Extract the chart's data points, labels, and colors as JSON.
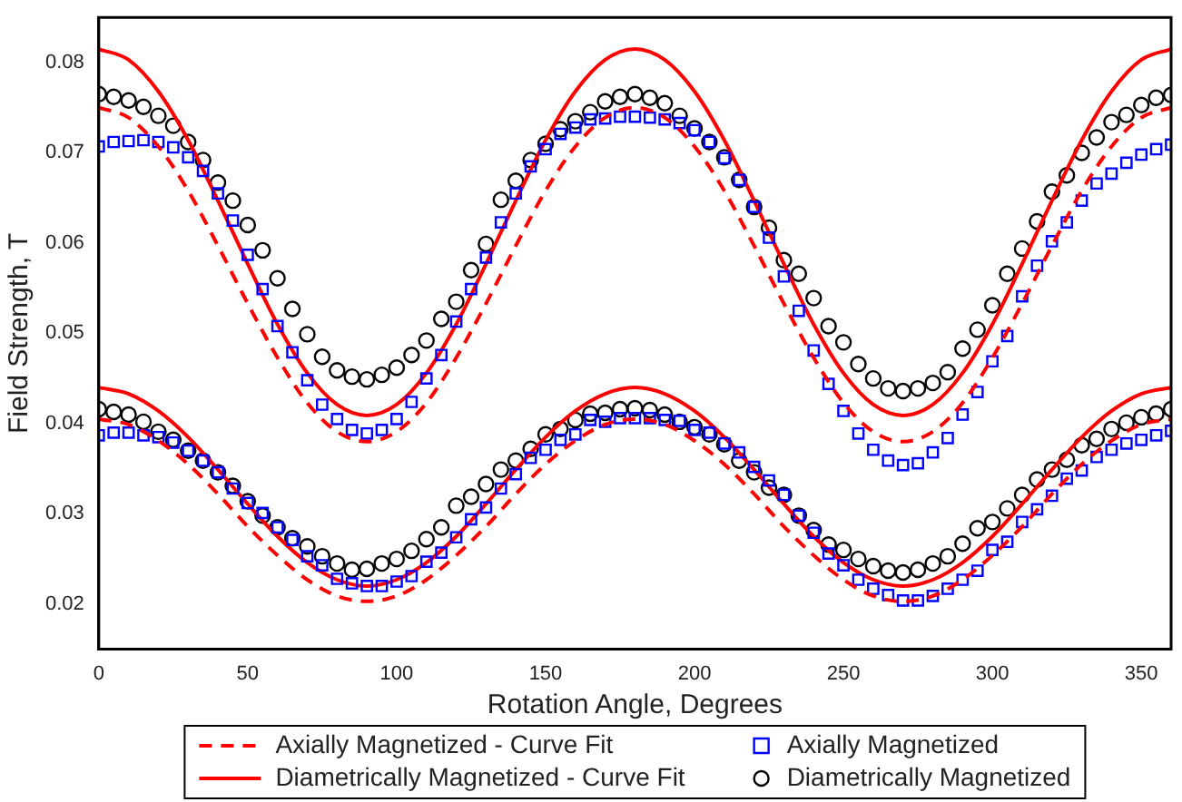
{
  "chart_data": {
    "type": "line",
    "xlabel": "Rotation Angle, Degrees",
    "ylabel": "Field Strength, T",
    "xlim": [
      0,
      360
    ],
    "xticks": [
      0,
      50,
      100,
      150,
      200,
      250,
      300,
      350
    ],
    "ylim": [
      0.015,
      0.085
    ],
    "yticks": [
      0.02,
      0.03,
      0.04,
      0.05,
      0.06,
      0.07,
      0.08
    ],
    "grid": false,
    "legend": "bottom",
    "x": [
      0,
      5,
      10,
      15,
      20,
      25,
      30,
      35,
      40,
      45,
      50,
      55,
      60,
      65,
      70,
      75,
      80,
      85,
      90,
      95,
      100,
      105,
      110,
      115,
      120,
      125,
      130,
      135,
      140,
      145,
      150,
      155,
      160,
      165,
      170,
      175,
      180,
      185,
      190,
      195,
      200,
      205,
      210,
      215,
      220,
      225,
      230,
      235,
      240,
      245,
      250,
      255,
      260,
      265,
      270,
      275,
      280,
      285,
      290,
      295,
      300,
      305,
      310,
      315,
      320,
      325,
      330,
      335,
      340,
      345,
      350,
      355,
      360
    ],
    "series": [
      {
        "name": "Axially Magnetized - Curve Fit",
        "type": "line",
        "color": "#ff0000",
        "line_style": "dashed",
        "marker": "none",
        "x": [
          0,
          10,
          20,
          30,
          40,
          50,
          60,
          70,
          80,
          90,
          100,
          110,
          120,
          130,
          140,
          150,
          160,
          170,
          180,
          190,
          200,
          210,
          220,
          230,
          240,
          250,
          260,
          270,
          280,
          290,
          300,
          310,
          320,
          330,
          340,
          350,
          360
        ],
        "values": [
          0.075,
          0.0739,
          0.0707,
          0.0658,
          0.0597,
          0.0533,
          0.0473,
          0.0423,
          0.0391,
          0.038,
          0.0391,
          0.0423,
          0.0473,
          0.0533,
          0.0597,
          0.0658,
          0.0707,
          0.0739,
          0.075,
          0.0739,
          0.0707,
          0.0658,
          0.0597,
          0.0533,
          0.0473,
          0.0423,
          0.0391,
          0.038,
          0.0391,
          0.0423,
          0.0473,
          0.0533,
          0.0597,
          0.0658,
          0.0707,
          0.0739,
          0.075
        ]
      },
      {
        "name": "Axially Magnetized",
        "type": "scatter",
        "color": "#0000ff",
        "marker": "square",
        "values": [
          0.0707,
          0.0712,
          0.0713,
          0.0714,
          0.0712,
          0.0706,
          0.0695,
          0.068,
          0.0655,
          0.0625,
          0.0587,
          0.0549,
          0.0508,
          0.0479,
          0.0448,
          0.0421,
          0.0405,
          0.0393,
          0.0389,
          0.0393,
          0.0405,
          0.0424,
          0.045,
          0.0476,
          0.0513,
          0.0549,
          0.0584,
          0.0623,
          0.0655,
          0.0685,
          0.0704,
          0.0721,
          0.0728,
          0.0737,
          0.0738,
          0.074,
          0.074,
          0.0739,
          0.0737,
          0.0733,
          0.0725,
          0.0712,
          0.0694,
          0.067,
          0.064,
          0.0606,
          0.0563,
          0.0525,
          0.0481,
          0.0444,
          0.0414,
          0.0389,
          0.0371,
          0.0359,
          0.0354,
          0.0356,
          0.0368,
          0.0384,
          0.041,
          0.0435,
          0.0469,
          0.0497,
          0.0541,
          0.0575,
          0.0602,
          0.0623,
          0.0647,
          0.0666,
          0.0677,
          0.0689,
          0.0698,
          0.0704,
          0.0709
        ]
      },
      {
        "name": "Diametrically Magnetized - Curve Fit",
        "type": "line",
        "color": "#ff0000",
        "line_style": "solid",
        "marker": "none",
        "x": [
          0,
          10,
          20,
          30,
          40,
          50,
          60,
          70,
          80,
          90,
          100,
          110,
          120,
          130,
          140,
          150,
          160,
          170,
          180,
          190,
          200,
          210,
          220,
          230,
          240,
          250,
          260,
          270,
          280,
          290,
          300,
          310,
          320,
          330,
          340,
          350,
          360
        ],
        "values": [
          0.0815,
          0.0803,
          0.0768,
          0.0714,
          0.0647,
          0.0577,
          0.051,
          0.0456,
          0.0421,
          0.0409,
          0.0421,
          0.0456,
          0.051,
          0.0577,
          0.0647,
          0.0714,
          0.0768,
          0.0803,
          0.0815,
          0.0803,
          0.0768,
          0.0714,
          0.0647,
          0.0577,
          0.051,
          0.0456,
          0.0421,
          0.0409,
          0.0421,
          0.0456,
          0.051,
          0.0577,
          0.0647,
          0.0714,
          0.0768,
          0.0803,
          0.0815
        ]
      },
      {
        "name": "Diametrically Magnetized",
        "type": "scatter",
        "color": "#000000",
        "marker": "circle",
        "values": [
          0.0765,
          0.0762,
          0.0758,
          0.0751,
          0.0741,
          0.073,
          0.0712,
          0.0692,
          0.0667,
          0.0647,
          0.062,
          0.0592,
          0.0561,
          0.0527,
          0.0499,
          0.0474,
          0.0459,
          0.0452,
          0.0449,
          0.0454,
          0.0462,
          0.0476,
          0.0492,
          0.0516,
          0.0535,
          0.057,
          0.0599,
          0.0648,
          0.0669,
          0.0692,
          0.071,
          0.0726,
          0.0735,
          0.0745,
          0.0757,
          0.0762,
          0.0765,
          0.0761,
          0.0755,
          0.0741,
          0.0727,
          0.0712,
          0.0695,
          0.067,
          0.064,
          0.0617,
          0.0581,
          0.0566,
          0.0539,
          0.0508,
          0.049,
          0.0466,
          0.045,
          0.0439,
          0.0436,
          0.0439,
          0.0445,
          0.0457,
          0.0483,
          0.0504,
          0.0531,
          0.0566,
          0.0594,
          0.0624,
          0.0657,
          0.0675,
          0.07,
          0.0717,
          0.0734,
          0.0742,
          0.0753,
          0.0761,
          0.0764
        ]
      },
      {
        "type": "line",
        "color": "#ff0000",
        "line_style": "dashed",
        "marker": "none",
        "x": [
          0,
          10,
          20,
          30,
          40,
          50,
          60,
          70,
          80,
          90,
          100,
          110,
          120,
          130,
          140,
          150,
          160,
          170,
          180,
          190,
          200,
          210,
          220,
          230,
          240,
          250,
          260,
          270,
          280,
          290,
          300,
          310,
          320,
          330,
          340,
          350,
          360
        ],
        "values": [
          0.0405,
          0.0399,
          0.0381,
          0.0355,
          0.0322,
          0.0286,
          0.0254,
          0.0227,
          0.0209,
          0.0203,
          0.0209,
          0.0227,
          0.0254,
          0.0286,
          0.0322,
          0.0355,
          0.0381,
          0.0399,
          0.0405,
          0.0399,
          0.0381,
          0.0355,
          0.0322,
          0.0286,
          0.0254,
          0.0227,
          0.0209,
          0.0203,
          0.0209,
          0.0227,
          0.0254,
          0.0286,
          0.0322,
          0.0355,
          0.0381,
          0.0399,
          0.0405
        ]
      },
      {
        "type": "scatter",
        "color": "#0000ff",
        "marker": "square",
        "values": [
          0.0387,
          0.039,
          0.039,
          0.0387,
          0.0385,
          0.0379,
          0.037,
          0.0359,
          0.0346,
          0.0328,
          0.0312,
          0.0301,
          0.0285,
          0.0271,
          0.0253,
          0.0243,
          0.0228,
          0.0223,
          0.022,
          0.022,
          0.0225,
          0.0231,
          0.0247,
          0.0257,
          0.0274,
          0.0294,
          0.0307,
          0.0328,
          0.0344,
          0.0362,
          0.0371,
          0.0382,
          0.0388,
          0.0404,
          0.0402,
          0.0406,
          0.0406,
          0.0406,
          0.0404,
          0.0403,
          0.0393,
          0.039,
          0.0378,
          0.0368,
          0.0352,
          0.0337,
          0.0321,
          0.0298,
          0.0279,
          0.0256,
          0.0243,
          0.0227,
          0.0217,
          0.021,
          0.0204,
          0.0204,
          0.0209,
          0.0217,
          0.0227,
          0.0237,
          0.026,
          0.0269,
          0.0291,
          0.0305,
          0.032,
          0.0339,
          0.0348,
          0.0363,
          0.0371,
          0.0378,
          0.0382,
          0.0387,
          0.0392
        ]
      },
      {
        "type": "line",
        "color": "#ff0000",
        "line_style": "solid",
        "marker": "none",
        "x": [
          0,
          10,
          20,
          30,
          40,
          50,
          60,
          70,
          80,
          90,
          100,
          110,
          120,
          130,
          140,
          150,
          160,
          170,
          180,
          190,
          200,
          210,
          220,
          230,
          240,
          250,
          260,
          270,
          280,
          290,
          300,
          310,
          320,
          330,
          340,
          350,
          360
        ],
        "values": [
          0.044,
          0.0433,
          0.0414,
          0.0385,
          0.0349,
          0.0311,
          0.0275,
          0.0246,
          0.0227,
          0.022,
          0.0227,
          0.0246,
          0.0275,
          0.0311,
          0.0349,
          0.0385,
          0.0414,
          0.0433,
          0.044,
          0.0433,
          0.0414,
          0.0385,
          0.0349,
          0.0311,
          0.0275,
          0.0246,
          0.0227,
          0.022,
          0.0227,
          0.0246,
          0.0275,
          0.0311,
          0.0349,
          0.0385,
          0.0414,
          0.0433,
          0.044
        ]
      },
      {
        "type": "scatter",
        "color": "#000000",
        "marker": "circle",
        "values": [
          0.0416,
          0.0413,
          0.041,
          0.0402,
          0.0391,
          0.0382,
          0.037,
          0.0359,
          0.0346,
          0.0331,
          0.0314,
          0.0298,
          0.0285,
          0.0273,
          0.0264,
          0.0253,
          0.0245,
          0.0238,
          0.0239,
          0.0245,
          0.025,
          0.0259,
          0.0272,
          0.0285,
          0.0309,
          0.0319,
          0.0333,
          0.0349,
          0.0359,
          0.0372,
          0.0388,
          0.0394,
          0.0404,
          0.0411,
          0.0412,
          0.0416,
          0.0417,
          0.0415,
          0.041,
          0.0402,
          0.0396,
          0.0388,
          0.0377,
          0.0359,
          0.0346,
          0.0329,
          0.0321,
          0.0298,
          0.0282,
          0.0266,
          0.026,
          0.025,
          0.0242,
          0.0237,
          0.0235,
          0.0238,
          0.0245,
          0.0253,
          0.0267,
          0.0284,
          0.0291,
          0.0306,
          0.0321,
          0.0338,
          0.0349,
          0.036,
          0.0376,
          0.0383,
          0.0394,
          0.0401,
          0.0407,
          0.0411,
          0.0416
        ]
      }
    ]
  }
}
